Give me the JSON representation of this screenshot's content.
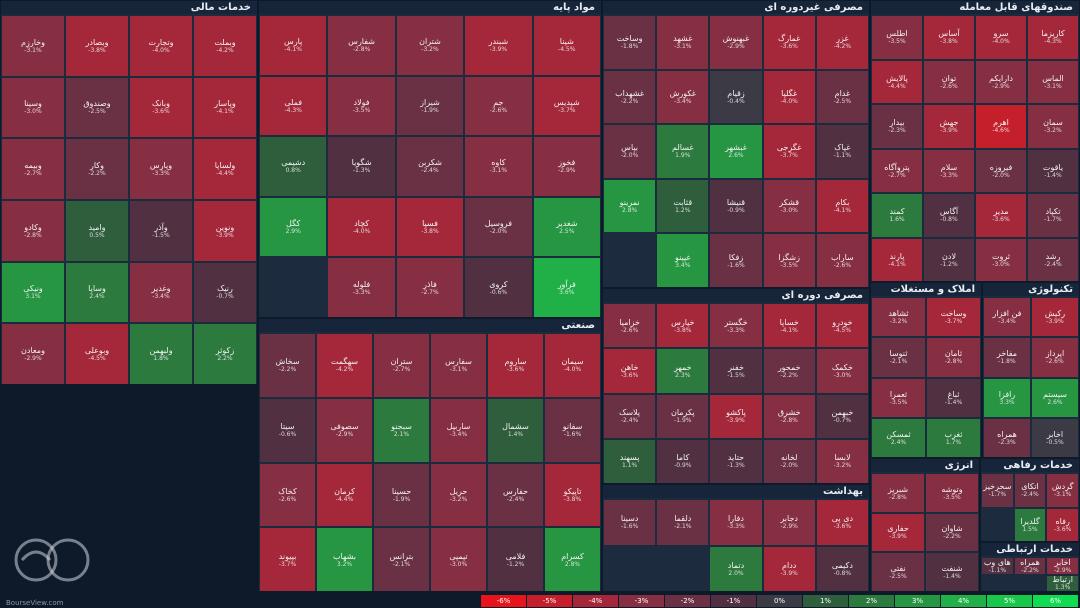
{
  "page": {
    "footer": "BourseView.com"
  },
  "legend": [
    {
      "label": "-6%",
      "color": "#e8141c"
    },
    {
      "label": "-5%",
      "color": "#c41f2b"
    },
    {
      "label": "-4%",
      "color": "#a5283a"
    },
    {
      "label": "-3%",
      "color": "#862f43"
    },
    {
      "label": "-2%",
      "color": "#6a3144"
    },
    {
      "label": "-1%",
      "color": "#513041"
    },
    {
      "label": "0%",
      "color": "#3c3a44"
    },
    {
      "label": "1%",
      "color": "#2f5e3d"
    },
    {
      "label": "2%",
      "color": "#2c7a3d"
    },
    {
      "label": "3%",
      "color": "#269642"
    },
    {
      "label": "4%",
      "color": "#21b047"
    },
    {
      "label": "5%",
      "color": "#19c84b"
    },
    {
      "label": "6%",
      "color": "#0fdc50"
    }
  ],
  "chart_data": {
    "type": "heatmap",
    "sectors": [
      {
        "name": "خدمات مالی",
        "tiles": [
          {
            "name": "وبملت",
            "change": -4.2
          },
          {
            "name": "وتجارت",
            "change": -4.0
          },
          {
            "name": "وبصادر",
            "change": -3.8
          },
          {
            "name": "وخارزم",
            "change": -3.1
          },
          {
            "name": "وپاسار",
            "change": -4.1
          },
          {
            "name": "وبانک",
            "change": -3.6
          },
          {
            "name": "وصندوق",
            "change": -2.5
          },
          {
            "name": "وسینا",
            "change": -3.0
          },
          {
            "name": "ولساپا",
            "change": -4.4
          },
          {
            "name": "وپارس",
            "change": -3.3
          },
          {
            "name": "وکار",
            "change": -2.2
          },
          {
            "name": "وبیمه",
            "change": -2.7
          },
          {
            "name": "ونوین",
            "change": -3.9
          },
          {
            "name": "وآذر",
            "change": -1.5
          },
          {
            "name": "وامید",
            "change": 0.5
          },
          {
            "name": "وکادو",
            "change": -2.8
          },
          {
            "name": "رنیک",
            "change": -0.7
          },
          {
            "name": "وغدیر",
            "change": -3.4
          },
          {
            "name": "وساپا",
            "change": 2.4
          },
          {
            "name": "ونیکی",
            "change": 3.1
          },
          {
            "name": "زکوثر",
            "change": 2.2
          },
          {
            "name": "ولبهمن",
            "change": 1.8
          },
          {
            "name": "وبوعلی",
            "change": -4.5
          },
          {
            "name": "ومعادن",
            "change": -2.9
          }
        ]
      },
      {
        "name": "مواد پایه",
        "tiles": [
          {
            "name": "شپنا",
            "change": -4.5
          },
          {
            "name": "شبندر",
            "change": -3.9
          },
          {
            "name": "شتران",
            "change": -3.2
          },
          {
            "name": "شفارس",
            "change": -2.8
          },
          {
            "name": "پارس",
            "change": -4.1
          },
          {
            "name": "شپدیس",
            "change": -3.7
          },
          {
            "name": "جم",
            "change": -2.6
          },
          {
            "name": "شیراز",
            "change": -1.9
          },
          {
            "name": "فولاد",
            "change": -3.5
          },
          {
            "name": "فملی",
            "change": -4.3
          },
          {
            "name": "فخوز",
            "change": -2.9
          },
          {
            "name": "کاوه",
            "change": -3.1
          },
          {
            "name": "شکربن",
            "change": -2.4
          },
          {
            "name": "شگویا",
            "change": -1.3
          },
          {
            "name": "دشیمی",
            "change": 0.8
          },
          {
            "name": "شغدیر",
            "change": 2.5
          },
          {
            "name": "فروسیل",
            "change": -2.0
          },
          {
            "name": "فسپا",
            "change": -3.8
          },
          {
            "name": "کچاد",
            "change": -4.0
          },
          {
            "name": "کگل",
            "change": 2.9
          },
          {
            "name": "فرآور",
            "change": 3.6
          },
          {
            "name": "کروی",
            "change": -0.6
          },
          {
            "name": "فاذر",
            "change": -2.7
          },
          {
            "name": "فلوله",
            "change": -3.3
          }
        ]
      },
      {
        "name": "مصرفی غیردوره ای",
        "tiles": [
          {
            "name": "غزر",
            "change": -4.2
          },
          {
            "name": "غمارگ",
            "change": -3.6
          },
          {
            "name": "غبهنوش",
            "change": -2.9
          },
          {
            "name": "غشهد",
            "change": -3.1
          },
          {
            "name": "وساخت",
            "change": -1.8
          },
          {
            "name": "غدام",
            "change": -2.5
          },
          {
            "name": "غگلپا",
            "change": -4.0
          },
          {
            "name": "زقیام",
            "change": -0.4
          },
          {
            "name": "غکورش",
            "change": -3.4
          },
          {
            "name": "غشهداب",
            "change": -2.2
          },
          {
            "name": "غپاک",
            "change": -1.1
          },
          {
            "name": "غگرجی",
            "change": -3.7
          },
          {
            "name": "غبشهر",
            "change": 2.6
          },
          {
            "name": "غسالم",
            "change": 1.9
          },
          {
            "name": "بپاس",
            "change": -2.0
          },
          {
            "name": "بکام",
            "change": -4.1
          },
          {
            "name": "قشکر",
            "change": -3.0
          },
          {
            "name": "قنیشا",
            "change": -0.9
          },
          {
            "name": "قثابت",
            "change": 1.2
          },
          {
            "name": "نمرینو",
            "change": 2.8
          },
          {
            "name": "ساراب",
            "change": -2.6
          },
          {
            "name": "زشگزا",
            "change": -3.5
          },
          {
            "name": "زفکا",
            "change": -1.6
          },
          {
            "name": "غپینو",
            "change": 3.4
          }
        ]
      },
      {
        "name": "صندوقهای قابل معامله",
        "tiles": [
          {
            "name": "کاریزما",
            "change": -4.3
          },
          {
            "name": "سرو",
            "change": -4.0
          },
          {
            "name": "آساس",
            "change": -3.8
          },
          {
            "name": "اطلس",
            "change": -3.5
          },
          {
            "name": "الماس",
            "change": -3.1
          },
          {
            "name": "دارایکم",
            "change": -2.9
          },
          {
            "name": "توان",
            "change": -2.6
          },
          {
            "name": "پالایش",
            "change": -4.4
          },
          {
            "name": "سمان",
            "change": -3.2
          },
          {
            "name": "اهرم",
            "change": -4.6
          },
          {
            "name": "جهش",
            "change": -3.9
          },
          {
            "name": "بیدار",
            "change": -2.3
          },
          {
            "name": "یاقوت",
            "change": -1.4
          },
          {
            "name": "فیروزه",
            "change": -2.0
          },
          {
            "name": "سلام",
            "change": -3.3
          },
          {
            "name": "پتروآگاه",
            "change": -2.7
          },
          {
            "name": "تکپاد",
            "change": -1.7
          },
          {
            "name": "مدیر",
            "change": -3.6
          },
          {
            "name": "آگاس",
            "change": -0.8
          },
          {
            "name": "کمند",
            "change": 1.6
          },
          {
            "name": "رشد",
            "change": -2.4
          },
          {
            "name": "ثروت",
            "change": -3.0
          },
          {
            "name": "لادن",
            "change": -1.2
          },
          {
            "name": "پارند",
            "change": -4.1
          }
        ]
      },
      {
        "name": "صنعتی",
        "tiles": [
          {
            "name": "سیمان",
            "change": -4.0
          },
          {
            "name": "ساروم",
            "change": -3.6
          },
          {
            "name": "سفارس",
            "change": -3.1
          },
          {
            "name": "ستران",
            "change": -2.7
          },
          {
            "name": "سهگمت",
            "change": -4.2
          },
          {
            "name": "سخاش",
            "change": -2.2
          },
          {
            "name": "سفانو",
            "change": -1.6
          },
          {
            "name": "سشمال",
            "change": 1.4
          },
          {
            "name": "ساربیل",
            "change": -3.4
          },
          {
            "name": "سبجنو",
            "change": 2.1
          },
          {
            "name": "سصوفی",
            "change": -2.9
          },
          {
            "name": "سیتا",
            "change": -0.6
          },
          {
            "name": "تاپیکو",
            "change": -3.8
          },
          {
            "name": "حفارس",
            "change": -2.4
          },
          {
            "name": "حریل",
            "change": -3.2
          },
          {
            "name": "حسینا",
            "change": -1.9
          },
          {
            "name": "کرمان",
            "change": -4.4
          },
          {
            "name": "کخاک",
            "change": -2.6
          },
          {
            "name": "کسرام",
            "change": 2.8
          },
          {
            "name": "فلامی",
            "change": -1.2
          },
          {
            "name": "تپمپی",
            "change": -3.0
          },
          {
            "name": "بترانس",
            "change": -2.1
          },
          {
            "name": "بشهاب",
            "change": 3.2
          },
          {
            "name": "بپیوند",
            "change": -3.7
          }
        ]
      },
      {
        "name": "مصرفی دوره ای",
        "tiles": [
          {
            "name": "خودرو",
            "change": -4.5
          },
          {
            "name": "خساپا",
            "change": -4.1
          },
          {
            "name": "خگستر",
            "change": -3.3
          },
          {
            "name": "خپارس",
            "change": -3.8
          },
          {
            "name": "خزامیا",
            "change": -2.6
          },
          {
            "name": "خکمک",
            "change": -3.0
          },
          {
            "name": "خمحور",
            "change": -2.2
          },
          {
            "name": "خفنر",
            "change": -1.5
          },
          {
            "name": "خمهر",
            "change": 2.3
          },
          {
            "name": "خاهن",
            "change": -3.6
          },
          {
            "name": "خبهمن",
            "change": -0.7
          },
          {
            "name": "خشرق",
            "change": -2.8
          },
          {
            "name": "پاکشو",
            "change": -3.9
          },
          {
            "name": "پکرمان",
            "change": -1.9
          },
          {
            "name": "پلاسک",
            "change": -2.4
          },
          {
            "name": "لابسا",
            "change": -3.2
          },
          {
            "name": "لخانه",
            "change": -2.0
          },
          {
            "name": "حتاید",
            "change": -1.3
          },
          {
            "name": "کاما",
            "change": -0.9
          },
          {
            "name": "پسهند",
            "change": 1.1
          }
        ]
      },
      {
        "name": "املاک و مستغلات",
        "tiles": [
          {
            "name": "وساخت",
            "change": -3.7
          },
          {
            "name": "ثشاهد",
            "change": -3.2
          },
          {
            "name": "ثامان",
            "change": -2.8
          },
          {
            "name": "ثنوسا",
            "change": -2.1
          },
          {
            "name": "ثباغ",
            "change": -1.4
          },
          {
            "name": "ثعمرا",
            "change": -3.5
          },
          {
            "name": "ثغرب",
            "change": 1.7
          },
          {
            "name": "ثمسکن",
            "change": 2.4
          }
        ]
      },
      {
        "name": "تکنولوژی",
        "tiles": [
          {
            "name": "رکیش",
            "change": -3.9
          },
          {
            "name": "فن افزار",
            "change": -3.4
          },
          {
            "name": "اپرداز",
            "change": -2.6
          },
          {
            "name": "مفاخر",
            "change": -1.8
          },
          {
            "name": "سیستم",
            "change": 2.6
          },
          {
            "name": "رافزا",
            "change": 3.3
          },
          {
            "name": "اخابر",
            "change": -0.5
          },
          {
            "name": "همراه",
            "change": -2.3
          }
        ]
      },
      {
        "name": "بهداشت",
        "tiles": [
          {
            "name": "دی پی",
            "change": -3.6
          },
          {
            "name": "دجابر",
            "change": -2.9
          },
          {
            "name": "دفارا",
            "change": -3.3
          },
          {
            "name": "دلقما",
            "change": -2.1
          },
          {
            "name": "دسینا",
            "change": -1.6
          },
          {
            "name": "دکیمی",
            "change": -0.8
          },
          {
            "name": "ددام",
            "change": -3.9
          },
          {
            "name": "دتماد",
            "change": 2.0
          }
        ]
      },
      {
        "name": "انرژی",
        "tiles": [
          {
            "name": "وتوشه",
            "change": -3.5
          },
          {
            "name": "شبریز",
            "change": -2.8
          },
          {
            "name": "شاوان",
            "change": -2.2
          },
          {
            "name": "حفاری",
            "change": -3.9
          },
          {
            "name": "شنفت",
            "change": -1.4
          },
          {
            "name": "نفتی",
            "change": -2.5
          }
        ]
      },
      {
        "name": "خدمات رفاهی",
        "tiles": [
          {
            "name": "گردش",
            "change": -3.1
          },
          {
            "name": "اتکای",
            "change": -2.4
          },
          {
            "name": "سحرخیز",
            "change": -1.7
          },
          {
            "name": "رفاه",
            "change": -3.6
          },
          {
            "name": "گلدیرا",
            "change": 1.5
          }
        ]
      },
      {
        "name": "خدمات ارتباطی",
        "tiles": [
          {
            "name": "اخابر",
            "change": -2.9
          },
          {
            "name": "همراه",
            "change": -2.2
          },
          {
            "name": "های وب",
            "change": -1.1
          },
          {
            "name": "ارتباط",
            "change": 1.3
          }
        ]
      }
    ]
  }
}
